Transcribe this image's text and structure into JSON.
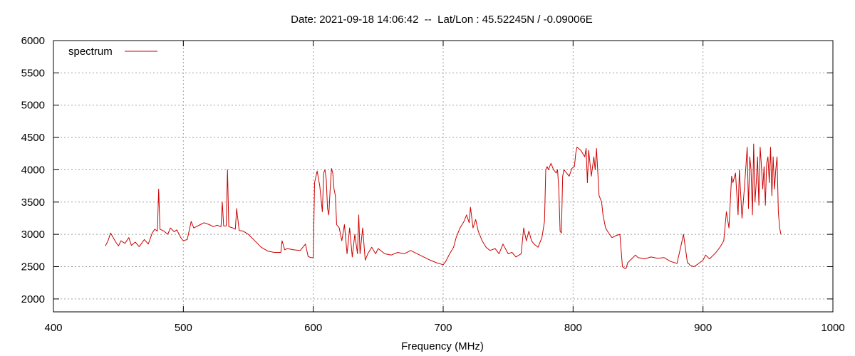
{
  "chart_data": {
    "type": "line",
    "title": "Date: 2021-09-18 14:06:42  --  Lat/Lon : 45.52245N / -0.09006E",
    "xlabel": "Frequency (MHz)",
    "ylabel": "",
    "xlim": [
      400,
      1000
    ],
    "ylim": [
      1800,
      6000
    ],
    "x_ticks": [
      400,
      500,
      600,
      700,
      800,
      900,
      1000
    ],
    "y_ticks": [
      2000,
      2500,
      3000,
      3500,
      4000,
      4500,
      5000,
      5500,
      6000
    ],
    "grid": true,
    "legend_position": "top-left",
    "series": [
      {
        "name": "spectrum",
        "color": "#cc0000",
        "x": [
          440,
          442,
          444,
          446,
          448,
          450,
          452,
          455,
          458,
          460,
          463,
          466,
          470,
          473,
          476,
          478,
          480,
          481,
          482,
          485,
          488,
          490,
          493,
          495,
          498,
          500,
          503,
          506,
          508,
          510,
          513,
          516,
          520,
          523,
          526,
          529,
          530,
          531,
          533,
          534,
          535,
          538,
          540,
          541,
          543,
          546,
          550,
          555,
          560,
          565,
          570,
          575,
          576,
          578,
          580,
          585,
          590,
          594,
          596,
          598,
          600,
          601,
          603,
          605,
          607,
          608,
          609,
          610,
          611,
          612,
          613,
          614,
          615,
          616,
          617,
          618,
          620,
          622,
          624,
          626,
          628,
          630,
          632,
          634,
          635,
          636,
          638,
          640,
          642,
          645,
          648,
          650,
          655,
          660,
          665,
          670,
          675,
          680,
          685,
          690,
          695,
          700,
          702,
          705,
          708,
          710,
          713,
          716,
          718,
          720,
          721,
          723,
          725,
          727,
          730,
          733,
          736,
          740,
          743,
          746,
          750,
          753,
          756,
          760,
          762,
          764,
          766,
          768,
          770,
          773,
          776,
          778,
          779,
          780,
          781,
          783,
          785,
          787,
          788,
          789,
          790,
          791,
          792,
          793,
          795,
          797,
          799,
          801,
          802,
          803,
          806,
          809,
          810,
          811,
          812,
          814,
          816,
          817,
          818,
          820,
          821,
          822,
          823,
          825,
          828,
          830,
          833,
          836,
          838,
          840,
          841,
          842,
          845,
          848,
          850,
          855,
          860,
          865,
          870,
          875,
          880,
          885,
          888,
          889,
          890,
          893,
          896,
          900,
          902,
          905,
          908,
          910,
          913,
          916,
          918,
          920,
          922,
          923,
          925,
          927,
          928,
          930,
          932,
          934,
          935,
          936,
          937,
          938,
          939,
          940,
          941,
          942,
          943,
          944,
          945,
          946,
          947,
          948,
          949,
          950,
          951,
          952,
          953,
          954,
          955,
          956,
          957,
          958,
          959,
          960
        ],
        "values": [
          2820,
          2900,
          3020,
          2950,
          2880,
          2820,
          2900,
          2860,
          2950,
          2830,
          2880,
          2810,
          2920,
          2850,
          3020,
          3080,
          3050,
          3700,
          3080,
          3050,
          3000,
          3100,
          3040,
          3070,
          2950,
          2900,
          2920,
          3200,
          3100,
          3120,
          3150,
          3180,
          3150,
          3120,
          3140,
          3120,
          3500,
          3130,
          3130,
          4000,
          3120,
          3100,
          3080,
          3400,
          3060,
          3050,
          3000,
          2900,
          2800,
          2740,
          2720,
          2720,
          2900,
          2760,
          2780,
          2760,
          2750,
          2850,
          2660,
          2640,
          2640,
          3800,
          3980,
          3750,
          3350,
          3950,
          4000,
          3850,
          3400,
          3300,
          3700,
          4020,
          3950,
          3700,
          3600,
          3150,
          3100,
          2900,
          3150,
          2700,
          3100,
          2650,
          3000,
          2700,
          3300,
          2700,
          3100,
          2600,
          2700,
          2800,
          2700,
          2780,
          2700,
          2680,
          2720,
          2700,
          2750,
          2700,
          2650,
          2600,
          2560,
          2530,
          2580,
          2700,
          2800,
          2950,
          3100,
          3200,
          3300,
          3180,
          3420,
          3100,
          3230,
          3050,
          2900,
          2800,
          2750,
          2780,
          2700,
          2850,
          2700,
          2720,
          2650,
          2700,
          3100,
          2900,
          3050,
          2900,
          2850,
          2800,
          2950,
          3200,
          4000,
          4050,
          4000,
          4100,
          4000,
          3950,
          4000,
          3700,
          3050,
          3020,
          3900,
          4000,
          3950,
          3900,
          4020,
          4050,
          4250,
          4350,
          4300,
          4200,
          4330,
          3800,
          4300,
          3900,
          4200,
          4000,
          4330,
          3600,
          3550,
          3500,
          3300,
          3100,
          3000,
          2950,
          2980,
          3000,
          2500,
          2470,
          2480,
          2560,
          2620,
          2680,
          2640,
          2620,
          2650,
          2630,
          2640,
          2580,
          2550,
          3000,
          2560,
          2550,
          2520,
          2500,
          2540,
          2600,
          2680,
          2620,
          2680,
          2720,
          2800,
          2900,
          3350,
          3100,
          3900,
          3800,
          3950,
          3300,
          4000,
          3250,
          3750,
          4350,
          3400,
          4200,
          4000,
          3300,
          4400,
          3500,
          3800,
          4200,
          3450,
          4350,
          4050,
          3700,
          4050,
          3450,
          4100,
          4200,
          3800,
          4350,
          3600,
          4200,
          3700,
          4000,
          4200,
          3350,
          3100,
          3000
        ]
      }
    ]
  }
}
